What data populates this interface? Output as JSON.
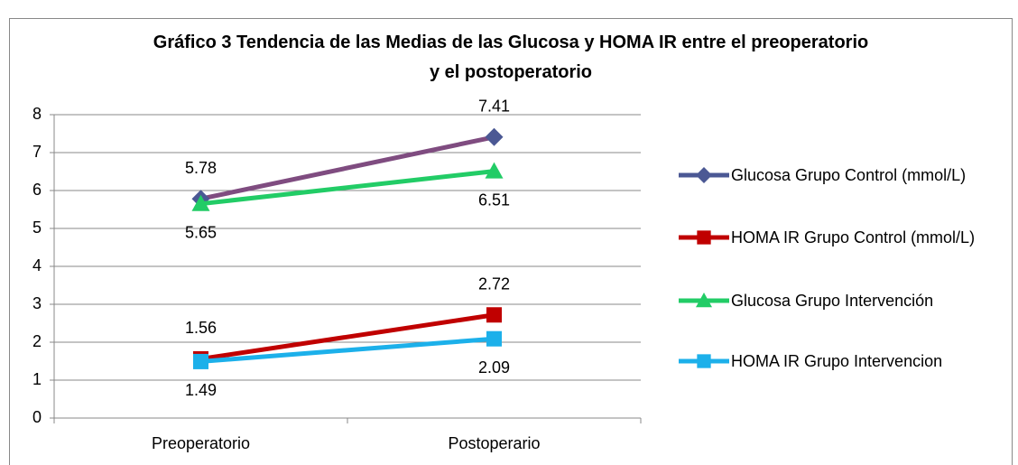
{
  "chart_data": {
    "type": "line",
    "title": "Gráfico 3 Tendencia de las Medias de las Glucosa y HOMA IR entre el preoperatorio y el postoperatorio",
    "categories": [
      "Preoperatorio",
      "Postoperario"
    ],
    "series": [
      {
        "name": "Glucosa Grupo Control (mmol/L)",
        "color": "#4b5894",
        "line_color": "#7f4c80",
        "marker": "diamond",
        "label_position": "above",
        "values": [
          5.78,
          7.41
        ]
      },
      {
        "name": "HOMA IR Grupo Control (mmol/L)",
        "color": "#c00000",
        "marker": "square",
        "label_position": "above",
        "values": [
          1.56,
          2.72
        ]
      },
      {
        "name": "Glucosa Grupo Intervención",
        "color": "#22cc66",
        "marker": "triangle",
        "label_position": "below",
        "values": [
          5.65,
          6.51
        ]
      },
      {
        "name": "HOMA IR Grupo Intervencion",
        "color": "#1cb0ea",
        "marker": "square",
        "label_position": "below",
        "values": [
          1.49,
          2.09
        ]
      }
    ],
    "ylim": [
      0,
      8
    ],
    "yticks": [
      0,
      1,
      2,
      3,
      4,
      5,
      6,
      7,
      8
    ],
    "grid": true,
    "legend": "right"
  }
}
